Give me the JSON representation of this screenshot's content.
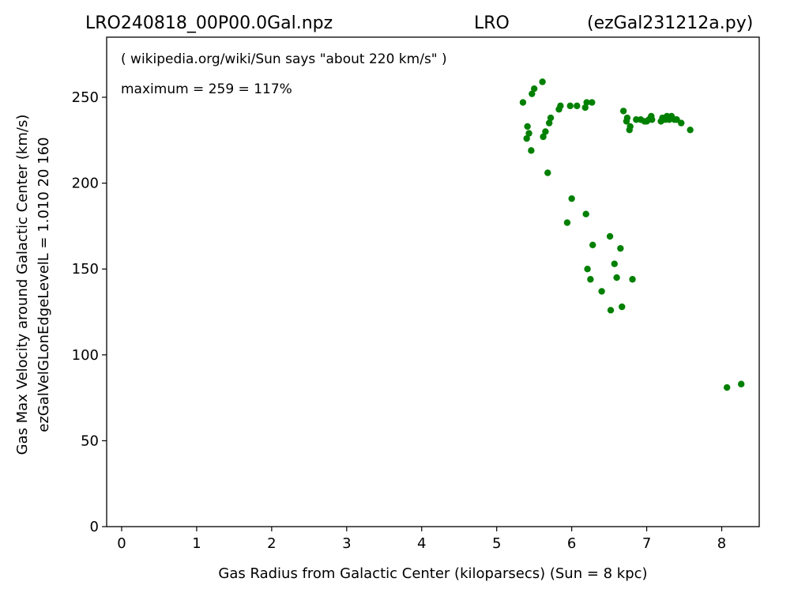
{
  "header": {
    "file_name": "LRO240818_00P00.0Gal.npz",
    "station": "LRO",
    "program": "(ezGal231212a.py)"
  },
  "annotations": {
    "reference": "( wikipedia.org/wiki/Sun says \"about 220 km/s\" )",
    "maximum": "maximum = 259 = 117%"
  },
  "chart_data": {
    "type": "scatter",
    "xlabel": "Gas Radius from Galactic Center (kiloparsecs)  (Sun = 8 kpc)",
    "ylabel_line1": "Gas Max Velocity around Galactic Center (km/s)",
    "ylabel_line2": "ezGalVelGLonEdgeLevelL = 1.010  20  160",
    "xlim": [
      -0.2,
      8.5
    ],
    "ylim": [
      0,
      285
    ],
    "xticks": [
      0,
      1,
      2,
      3,
      4,
      5,
      6,
      7,
      8
    ],
    "yticks": [
      0,
      50,
      100,
      150,
      200,
      250
    ],
    "grid": false,
    "marker_color": "#008000",
    "points": [
      [
        5.35,
        247
      ],
      [
        5.4,
        226
      ],
      [
        5.41,
        233
      ],
      [
        5.43,
        229
      ],
      [
        5.46,
        219
      ],
      [
        5.47,
        252
      ],
      [
        5.5,
        255
      ],
      [
        5.61,
        259
      ],
      [
        5.62,
        227
      ],
      [
        5.65,
        230
      ],
      [
        5.68,
        206
      ],
      [
        5.7,
        235
      ],
      [
        5.72,
        238
      ],
      [
        5.83,
        243
      ],
      [
        5.85,
        245
      ],
      [
        5.94,
        177
      ],
      [
        5.98,
        245
      ],
      [
        6.0,
        191
      ],
      [
        6.07,
        245
      ],
      [
        6.18,
        244
      ],
      [
        6.19,
        182
      ],
      [
        6.2,
        247
      ],
      [
        6.21,
        150
      ],
      [
        6.25,
        144
      ],
      [
        6.27,
        247
      ],
      [
        6.28,
        164
      ],
      [
        6.4,
        137
      ],
      [
        6.51,
        169
      ],
      [
        6.52,
        126
      ],
      [
        6.57,
        153
      ],
      [
        6.6,
        145
      ],
      [
        6.65,
        162
      ],
      [
        6.67,
        128
      ],
      [
        6.69,
        242
      ],
      [
        6.73,
        236
      ],
      [
        6.74,
        238
      ],
      [
        6.77,
        231
      ],
      [
        6.78,
        233
      ],
      [
        6.81,
        144
      ],
      [
        6.86,
        237
      ],
      [
        6.92,
        237
      ],
      [
        6.97,
        236
      ],
      [
        7.0,
        236
      ],
      [
        7.03,
        237
      ],
      [
        7.06,
        239
      ],
      [
        7.07,
        237
      ],
      [
        7.19,
        236
      ],
      [
        7.21,
        238
      ],
      [
        7.25,
        237
      ],
      [
        7.27,
        239
      ],
      [
        7.3,
        237
      ],
      [
        7.33,
        239
      ],
      [
        7.37,
        237
      ],
      [
        7.4,
        237
      ],
      [
        7.46,
        235
      ],
      [
        7.58,
        231
      ],
      [
        8.07,
        81
      ],
      [
        8.26,
        83
      ]
    ]
  }
}
